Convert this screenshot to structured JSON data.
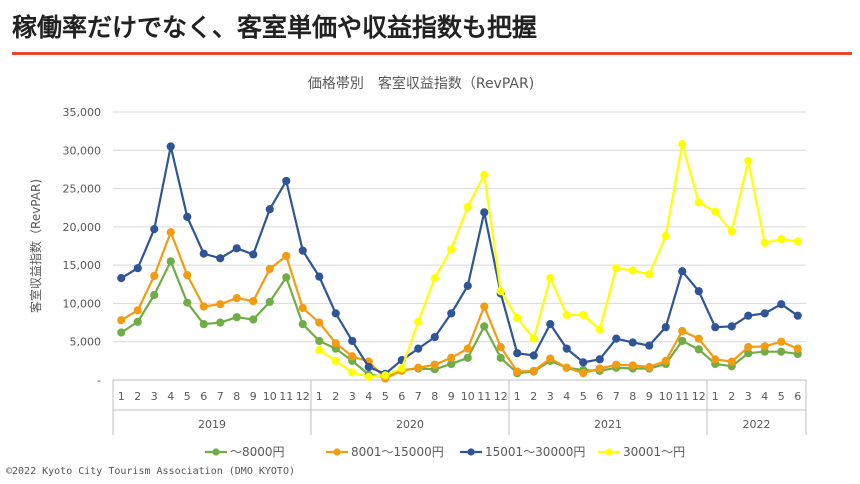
{
  "page": {
    "title": "稼働率だけでなく、客室単価や収益指数も把握",
    "copyright": "©2022 Kyoto City Tourism Association (DMO KYOTO)"
  },
  "colors": {
    "accent_rule": "#e8452c",
    "grid": "#d9d9d9",
    "axis_text": "#595959"
  },
  "chart_data": {
    "type": "line",
    "title": "価格帯別　客室収益指数（RevPAR)",
    "ylabel": "客室収益指数（RevPAR)",
    "xlabel": "",
    "ylim": [
      0,
      35000
    ],
    "yticks": [
      "-",
      "5,000",
      "10,000",
      "15,000",
      "20,000",
      "25,000",
      "30,000",
      "35,000"
    ],
    "grid": true,
    "legend_position": "bottom",
    "months": [
      "1",
      "2",
      "3",
      "4",
      "5",
      "6",
      "7",
      "8",
      "9",
      "10",
      "11",
      "12",
      "1",
      "2",
      "3",
      "4",
      "5",
      "6",
      "7",
      "8",
      "9",
      "10",
      "11",
      "12",
      "1",
      "2",
      "3",
      "4",
      "5",
      "6",
      "7",
      "8",
      "9",
      "10",
      "11",
      "12",
      "1",
      "2",
      "3",
      "4",
      "5",
      "6"
    ],
    "years": [
      {
        "label": "2019",
        "start": 0,
        "end": 11
      },
      {
        "label": "2020",
        "start": 12,
        "end": 23
      },
      {
        "label": "2021",
        "start": 24,
        "end": 35
      },
      {
        "label": "2022",
        "start": 36,
        "end": 41
      }
    ],
    "series": [
      {
        "name": "～8000円",
        "color": "#70ad47",
        "start": 0,
        "values": [
          6200,
          7600,
          11100,
          15500,
          10100,
          7300,
          7500,
          8200,
          7900,
          10200,
          13400,
          7300,
          5100,
          4100,
          2500,
          700,
          400,
          1300,
          1500,
          1400,
          2100,
          2900,
          7000,
          2900,
          900,
          1100,
          2500,
          1600,
          1300,
          1200,
          1600,
          1500,
          1500,
          2100,
          5100,
          4000,
          2100,
          1800,
          3500,
          3700,
          3700,
          3400
        ]
      },
      {
        "name": "8001～15000円",
        "color": "#f39c12",
        "start": 0,
        "values": [
          7800,
          9100,
          13600,
          19300,
          13700,
          9600,
          9900,
          10700,
          10300,
          14500,
          16200,
          9400,
          7500,
          4800,
          3100,
          2400,
          200,
          1200,
          1600,
          2000,
          2900,
          4100,
          9600,
          4300,
          1100,
          1200,
          2800,
          1600,
          900,
          1500,
          2000,
          1900,
          1700,
          2500,
          6400,
          5400,
          2700,
          2400,
          4300,
          4400,
          5000,
          4100
        ]
      },
      {
        "name": "15001～30000円",
        "color": "#2f5597",
        "start": 0,
        "values": [
          13300,
          14600,
          19700,
          30500,
          21300,
          16500,
          15900,
          17200,
          16400,
          22300,
          26000,
          16900,
          13500,
          8700,
          5100,
          1700,
          800,
          2600,
          4100,
          5600,
          8700,
          12300,
          21900,
          11300,
          3500,
          3200,
          7300,
          4100,
          2300,
          2700,
          5400,
          4900,
          4500,
          6900,
          14200,
          11600,
          6900,
          7000,
          8400,
          8700,
          9900,
          8400
        ]
      },
      {
        "name": "30001～円",
        "color": "#ffff00",
        "start": 12,
        "values": [
          3900,
          2500,
          1000,
          400,
          600,
          1500,
          7600,
          13300,
          17100,
          22600,
          26800,
          11600,
          8100,
          5400,
          13300,
          8500,
          8500,
          6600,
          14600,
          14300,
          13800,
          18800,
          30800,
          23200,
          22000,
          19400,
          28600,
          17900,
          18400,
          18100
        ]
      }
    ]
  }
}
